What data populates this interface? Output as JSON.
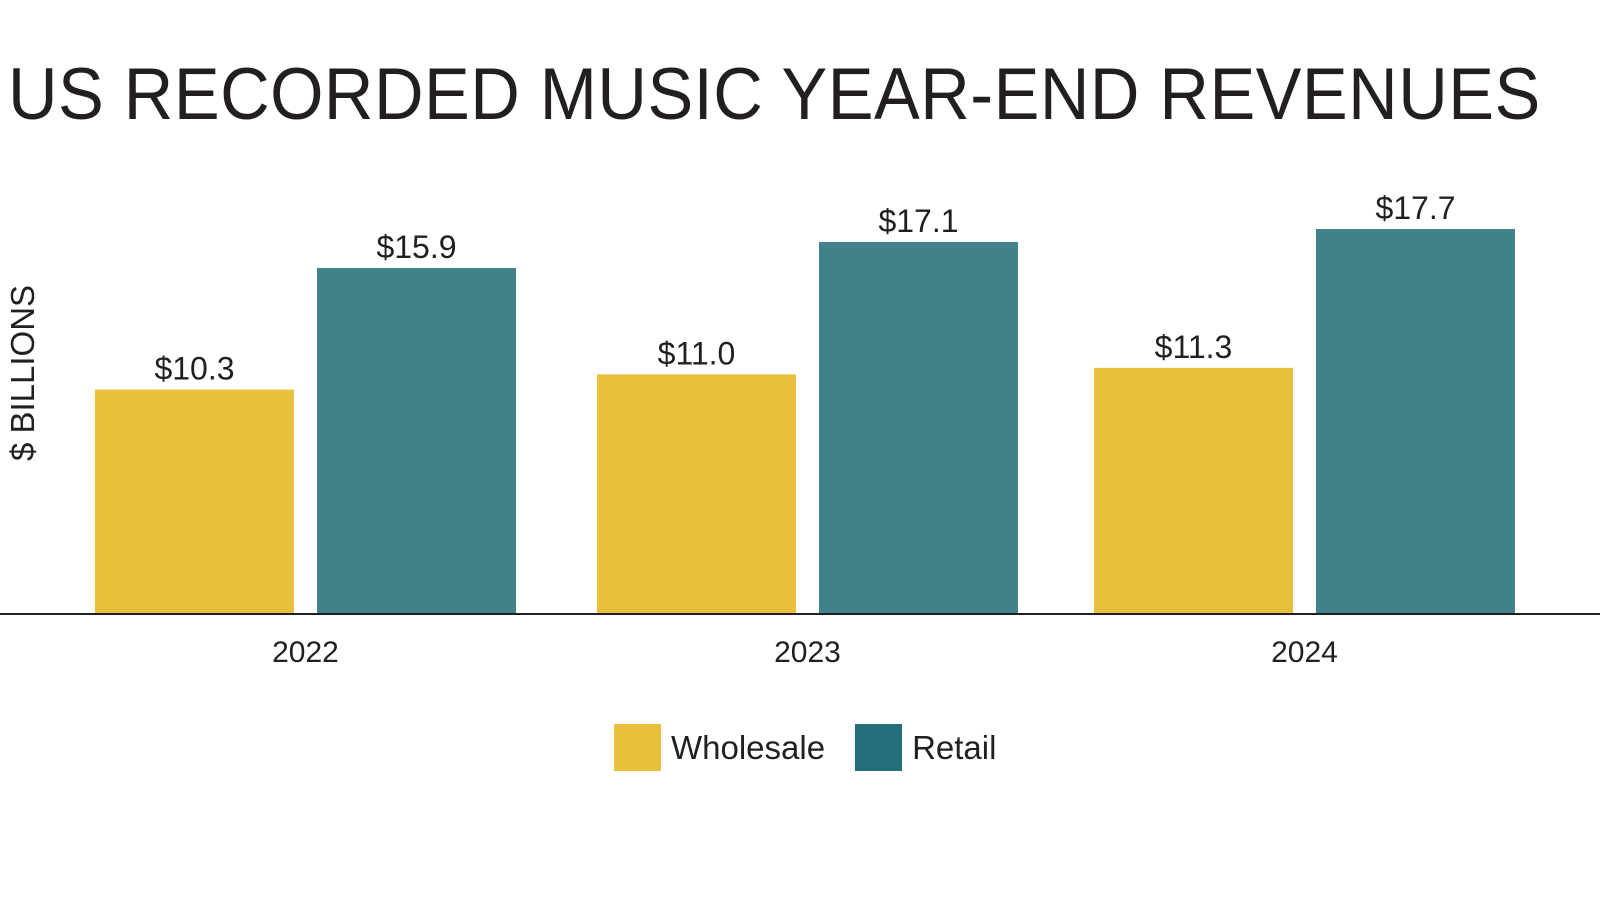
{
  "chart_data": {
    "type": "bar",
    "title": "US RECORDED MUSIC YEAR-END REVENUES",
    "ylabel": "$ BILLIONS",
    "xlabel": "",
    "categories": [
      "2022",
      "2023",
      "2024"
    ],
    "series": [
      {
        "name": "Wholesale",
        "values": [
          10.3,
          11.0,
          11.3
        ],
        "labels": [
          "$10.3",
          "$11.0",
          "$11.3"
        ],
        "color": "#e8c03c"
      },
      {
        "name": "Retail",
        "values": [
          15.9,
          17.1,
          17.7
        ],
        "labels": [
          "$15.9",
          "$17.1",
          "$17.7"
        ],
        "color": "#40818a"
      }
    ],
    "ylim": [
      0,
      17.7
    ],
    "grid": false,
    "legend_position": "bottom-center",
    "legend_swatch_colors": [
      "#e8c03c",
      "#226e7a"
    ]
  }
}
